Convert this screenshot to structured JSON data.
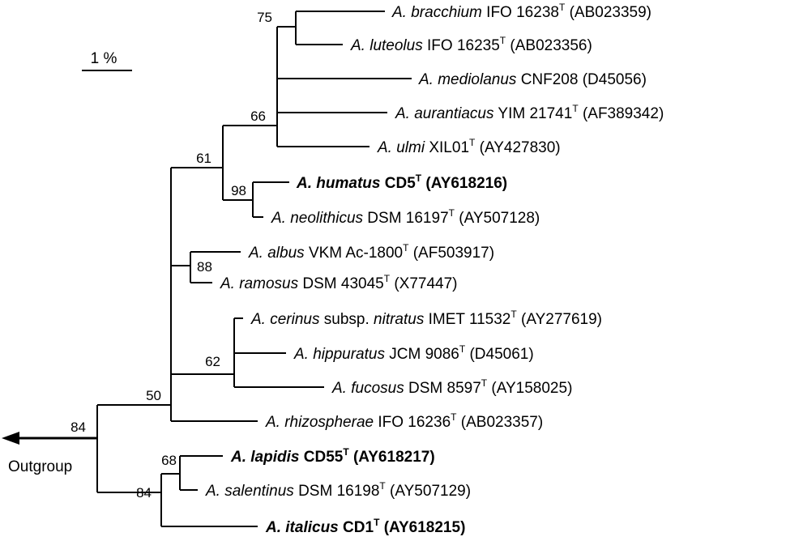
{
  "scale_bar": {
    "label": "1 %"
  },
  "outgroup_label": "Outgroup",
  "taxa": [
    {
      "id": "t1",
      "genus": "A.",
      "species": "bracchium",
      "strain": "IFO 16238",
      "type": true,
      "acc": "(AB023359)",
      "bold": false
    },
    {
      "id": "t2",
      "genus": "A.",
      "species": "luteolus",
      "strain": "IFO 16235",
      "type": true,
      "acc": "(AB023356)",
      "bold": false
    },
    {
      "id": "t3",
      "genus": "A.",
      "species": "mediolanus",
      "strain": "CNF208",
      "type": false,
      "acc": "(D45056)",
      "bold": false
    },
    {
      "id": "t4",
      "genus": "A.",
      "species": "aurantiacus",
      "strain": "YIM 21741",
      "type": true,
      "acc": "(AF389342)",
      "bold": false
    },
    {
      "id": "t5",
      "genus": "A.",
      "species": "ulmi",
      "strain": "XIL01",
      "type": true,
      "acc": "(AY427830)",
      "bold": false
    },
    {
      "id": "t6",
      "genus": "A.",
      "species": "humatus",
      "strain": "CD5",
      "type": true,
      "acc": "(AY618216)",
      "bold": true
    },
    {
      "id": "t7",
      "genus": "A.",
      "species": "neolithicus",
      "strain": "DSM 16197",
      "type": true,
      "acc": "(AY507128)",
      "bold": false
    },
    {
      "id": "t8",
      "genus": "A.",
      "species": "albus",
      "strain": "VKM Ac-1800",
      "type": true,
      "acc": "(AF503917)",
      "bold": false
    },
    {
      "id": "t9",
      "genus": "A.",
      "species": "ramosus",
      "strain": "DSM 43045",
      "type": true,
      "acc": "(X77447)",
      "bold": false
    },
    {
      "id": "t10",
      "genus": "A.",
      "species": "cerinus",
      "subsp_word": "subsp.",
      "subsp": "nitratus",
      "strain": "IMET 11532",
      "type": true,
      "acc": "(AY277619)",
      "bold": false
    },
    {
      "id": "t11",
      "genus": "A.",
      "species": "hippuratus",
      "strain": "JCM 9086",
      "type": true,
      "acc": "(D45061)",
      "bold": false
    },
    {
      "id": "t12",
      "genus": "A.",
      "species": "fucosus",
      "strain": "DSM 8597",
      "type": true,
      "acc": "(AY158025)",
      "bold": false
    },
    {
      "id": "t13",
      "genus": "A.",
      "species": "rhizospherae",
      "strain": "IFO 16236",
      "type": true,
      "acc": "(AB023357)",
      "bold": false
    },
    {
      "id": "t14",
      "genus": "A.",
      "species": "lapidis",
      "strain": "CD55",
      "type": true,
      "acc": "(AY618217)",
      "bold": true
    },
    {
      "id": "t15",
      "genus": "A.",
      "species": "salentinus",
      "strain": "DSM 16198",
      "type": true,
      "acc": "(AY507129)",
      "bold": false
    },
    {
      "id": "t16",
      "genus": "A.",
      "species": "italicus",
      "strain": "CD1",
      "type": true,
      "acc": "(AY618215)",
      "bold": true
    }
  ],
  "bootstrap": [
    {
      "id": "b75",
      "value": "75"
    },
    {
      "id": "b66",
      "value": "66"
    },
    {
      "id": "b61",
      "value": "61"
    },
    {
      "id": "b98",
      "value": "98"
    },
    {
      "id": "b88",
      "value": "88"
    },
    {
      "id": "b62",
      "value": "62"
    },
    {
      "id": "b50",
      "value": "50"
    },
    {
      "id": "b84root",
      "value": "84"
    },
    {
      "id": "b68",
      "value": "68"
    },
    {
      "id": "b84low",
      "value": "84"
    }
  ]
}
